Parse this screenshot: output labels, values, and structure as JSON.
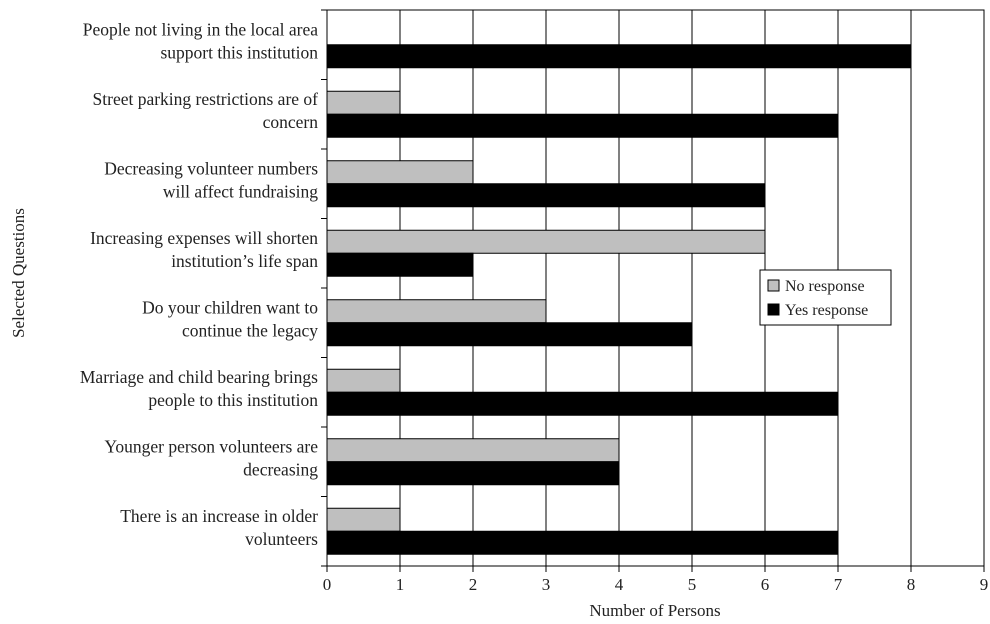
{
  "chart_data": {
    "type": "bar",
    "orientation": "horizontal",
    "title": "",
    "xlabel": "Number of Persons",
    "ylabel": "Selected Questions",
    "xlim": [
      0,
      9
    ],
    "xticks": [
      0,
      1,
      2,
      3,
      4,
      5,
      6,
      7,
      8,
      9
    ],
    "grid": "vertical",
    "legend_position": "right",
    "categories": [
      [
        "People not living in the local area",
        "support this institution"
      ],
      [
        "Street parking restrictions are of",
        "concern"
      ],
      [
        "Decreasing volunteer numbers",
        "will affect fundraising"
      ],
      [
        "Increasing expenses will shorten",
        "institution’s life span"
      ],
      [
        "Do your children want to",
        "continue the legacy"
      ],
      [
        "Marriage and child bearing brings",
        "people to this institution"
      ],
      [
        "Younger person volunteers are",
        "decreasing"
      ],
      [
        "There is an increase in older",
        "volunteers"
      ]
    ],
    "series": [
      {
        "name": "No response",
        "color": "#bfbfbf",
        "values": [
          0,
          1,
          2,
          6,
          3,
          1,
          4,
          1
        ]
      },
      {
        "name": "Yes response",
        "color": "#000000",
        "values": [
          8,
          7,
          6,
          2,
          5,
          7,
          4,
          7
        ]
      }
    ]
  }
}
